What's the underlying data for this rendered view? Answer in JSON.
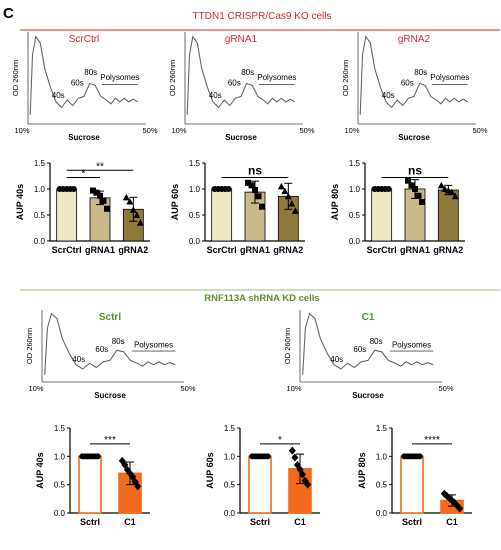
{
  "panel_label": "C",
  "section1_title": "TTDN1 CRISPR/Cas9 KO cells",
  "section2_title": "RNF113A shRNA KD  cells",
  "colors": {
    "red": "#d7262b",
    "green": "#5b8f2a",
    "line": "#555555",
    "cream": "#efe8c6",
    "olive1": "#c9b888",
    "olive2": "#8f7a3a",
    "orange": "#f26a1b"
  },
  "profile_labels": {
    "y": "OD 260nm",
    "x": "Sucrose",
    "x_start": "10%",
    "x_end": "50%",
    "peak40": "40s",
    "peak60": "60s",
    "peak80": "80s",
    "poly": "Polysomes"
  },
  "profiles": [
    {
      "title": "ScrCtrl"
    },
    {
      "title": "gRNA1"
    },
    {
      "title": "gRNA2"
    },
    {
      "title": "Sctrl"
    },
    {
      "title": "C1"
    }
  ],
  "chart_data": [
    {
      "type": "bar",
      "categories": [
        "ScrCtrl",
        "gRNA1",
        "gRNA2"
      ],
      "ylabel": "AUP 40s",
      "ylim": [
        0,
        1.5
      ],
      "yticks": [
        "0.0",
        "0.5",
        "1.0",
        "1.5"
      ],
      "values": [
        1.0,
        0.83,
        0.61
      ],
      "errors": [
        0.0,
        0.13,
        0.23
      ],
      "points": [
        [
          1,
          1,
          1,
          1,
          1
        ],
        [
          0.97,
          0.93,
          0.87,
          0.77,
          0.62
        ],
        [
          0.84,
          0.76,
          0.6,
          0.5,
          0.35
        ]
      ],
      "colors": [
        "#efe8c6",
        "#c9b888",
        "#8f7a3a"
      ],
      "markers": [
        "circle",
        "square",
        "triangle"
      ],
      "significance": [
        {
          "from": 0,
          "to": 1,
          "label": "*"
        },
        {
          "from": 0,
          "to": 2,
          "label": "**"
        }
      ]
    },
    {
      "type": "bar",
      "categories": [
        "ScrCtrl",
        "gRNA1",
        "gRNA2"
      ],
      "ylabel": "AUP 60s",
      "ylim": [
        0,
        1.5
      ],
      "yticks": [
        "0.0",
        "0.5",
        "1.0",
        "1.5"
      ],
      "values": [
        1.0,
        0.94,
        0.86
      ],
      "errors": [
        0.0,
        0.21,
        0.25
      ],
      "points": [
        [
          1,
          1,
          1,
          1,
          1
        ],
        [
          1.12,
          1.07,
          0.98,
          0.86,
          0.66
        ],
        [
          1.05,
          0.96,
          0.86,
          0.72,
          0.58
        ]
      ],
      "colors": [
        "#efe8c6",
        "#c9b888",
        "#8f7a3a"
      ],
      "markers": [
        "circle",
        "square",
        "triangle"
      ],
      "significance": [
        {
          "from": 0,
          "to": 2,
          "label": "ns"
        }
      ]
    },
    {
      "type": "bar",
      "categories": [
        "ScrCtrl",
        "gRNA1",
        "gRNA2"
      ],
      "ylabel": "AUP 80s",
      "ylim": [
        0,
        1.5
      ],
      "yticks": [
        "0.0",
        "0.5",
        "1.0",
        "1.5"
      ],
      "values": [
        1.0,
        1.0,
        0.98
      ],
      "errors": [
        0.0,
        0.18,
        0.09
      ],
      "points": [
        [
          1,
          1,
          1,
          1,
          1
        ],
        [
          1.16,
          1.07,
          1.0,
          0.87,
          0.75
        ],
        [
          1.07,
          1.0,
          0.97,
          0.94,
          0.86
        ]
      ],
      "colors": [
        "#efe8c6",
        "#c9b888",
        "#8f7a3a"
      ],
      "markers": [
        "circle",
        "square",
        "triangle"
      ],
      "significance": [
        {
          "from": 0,
          "to": 2,
          "label": "ns"
        }
      ]
    },
    {
      "type": "bar",
      "categories": [
        "Sctrl",
        "C1"
      ],
      "ylabel": "AUP 40s",
      "ylim": [
        0,
        1.5
      ],
      "yticks": [
        "0.0",
        "0.5",
        "1.0",
        "1.5"
      ],
      "values": [
        1.0,
        0.7
      ],
      "errors": [
        0.0,
        0.2
      ],
      "points": [
        [
          1,
          1,
          1,
          1,
          1,
          1,
          1
        ],
        [
          0.92,
          0.85,
          0.76,
          0.7,
          0.64,
          0.55,
          0.47
        ]
      ],
      "colors": [
        "#ffffff",
        "#f26a1b"
      ],
      "markers": [
        "circle",
        "diamond"
      ],
      "significance": [
        {
          "from": 0,
          "to": 1,
          "label": "***"
        }
      ]
    },
    {
      "type": "bar",
      "categories": [
        "Sctrl",
        "C1"
      ],
      "ylabel": "AUP 60s",
      "ylim": [
        0,
        1.5
      ],
      "yticks": [
        "0.0",
        "0.5",
        "1.0",
        "1.5"
      ],
      "values": [
        1.0,
        0.78
      ],
      "errors": [
        0.0,
        0.26
      ],
      "points": [
        [
          1,
          1,
          1,
          1,
          1,
          1,
          1
        ],
        [
          1.1,
          0.98,
          0.85,
          0.77,
          0.68,
          0.57,
          0.5
        ]
      ],
      "colors": [
        "#ffffff",
        "#f26a1b"
      ],
      "markers": [
        "circle",
        "diamond"
      ],
      "significance": [
        {
          "from": 0,
          "to": 1,
          "label": "*"
        }
      ]
    },
    {
      "type": "bar",
      "categories": [
        "Sctrl",
        "C1"
      ],
      "ylabel": "AUP 80s",
      "ylim": [
        0,
        1.5
      ],
      "yticks": [
        "0.0",
        "0.5",
        "1.0",
        "1.5"
      ],
      "values": [
        1.0,
        0.22
      ],
      "errors": [
        0.0,
        0.1
      ],
      "points": [
        [
          1,
          1,
          1,
          1,
          1,
          1,
          1
        ],
        [
          0.34,
          0.3,
          0.26,
          0.22,
          0.18,
          0.13,
          0.08
        ]
      ],
      "colors": [
        "#ffffff",
        "#f26a1b"
      ],
      "markers": [
        "circle",
        "diamond"
      ],
      "significance": [
        {
          "from": 0,
          "to": 1,
          "label": "****"
        }
      ]
    }
  ]
}
